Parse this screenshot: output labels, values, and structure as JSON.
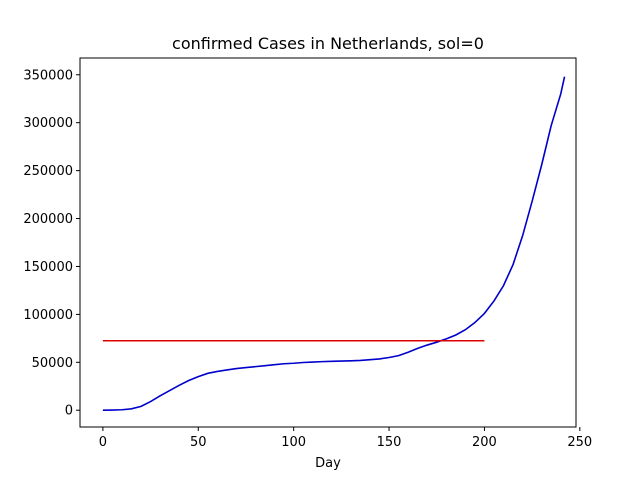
{
  "chart_data": {
    "type": "line",
    "title": "confirmed Cases in Netherlands, sol=0",
    "xlabel": "Day",
    "ylabel": "",
    "xlim": [
      -12,
      248
    ],
    "ylim": [
      -17500,
      367500
    ],
    "x_ticks": [
      0,
      50,
      100,
      150,
      200,
      250
    ],
    "x_tick_labels": [
      "0",
      "50",
      "100",
      "150",
      "200",
      "250"
    ],
    "y_ticks": [
      0,
      50000,
      100000,
      150000,
      200000,
      250000,
      300000,
      350000
    ],
    "y_tick_labels": [
      "0",
      "50000",
      "100000",
      "150000",
      "200000",
      "250000",
      "300000",
      "350000"
    ],
    "grid": false,
    "series": [
      {
        "color": "#0000cc",
        "x": [
          0,
          5,
          10,
          15,
          20,
          25,
          30,
          35,
          40,
          45,
          50,
          55,
          60,
          65,
          70,
          75,
          80,
          85,
          90,
          95,
          100,
          105,
          110,
          115,
          120,
          125,
          130,
          135,
          140,
          145,
          150,
          155,
          160,
          165,
          170,
          175,
          180,
          185,
          190,
          195,
          200,
          205,
          210,
          215,
          220,
          225,
          230,
          235,
          240,
          242
        ],
        "values": [
          0,
          200,
          500,
          1500,
          4000,
          9000,
          15000,
          20500,
          26000,
          31000,
          35000,
          38500,
          40500,
          42000,
          43500,
          44500,
          45500,
          46500,
          47500,
          48500,
          49000,
          49800,
          50300,
          50700,
          51000,
          51300,
          51600,
          52000,
          52700,
          53500,
          55000,
          57000,
          60500,
          64500,
          68000,
          71000,
          74500,
          78500,
          84000,
          91500,
          101000,
          114000,
          130000,
          152000,
          182000,
          218000,
          256000,
          297000,
          330000,
          348000
        ]
      },
      {
        "color": "#dd0000",
        "x": [
          0,
          200
        ],
        "values": [
          72500,
          72500
        ]
      }
    ]
  }
}
